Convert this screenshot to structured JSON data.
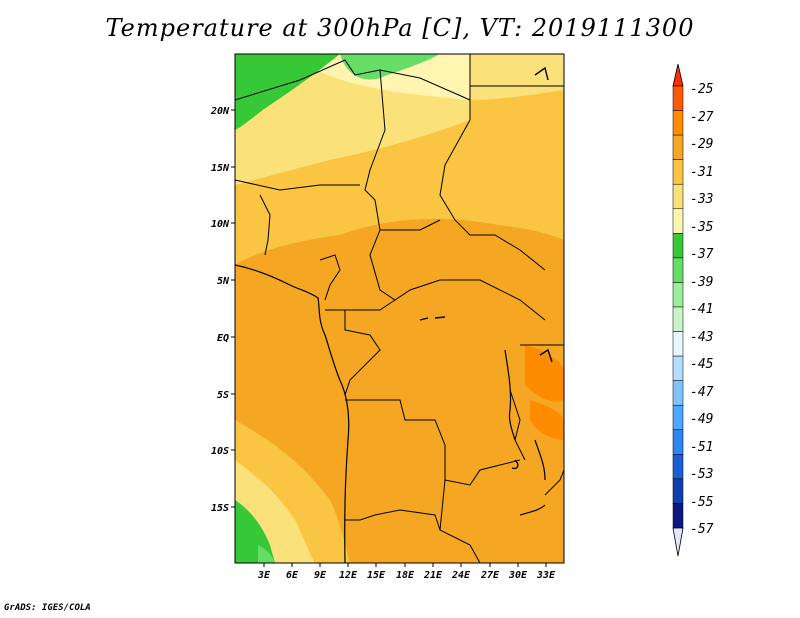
{
  "title": "Temperature at 300hPa [C], VT: 2019111300",
  "credit": "GrADS: IGES/COLA",
  "map": {
    "lat_labels": [
      "20N",
      "15N",
      "10N",
      "5N",
      "EQ",
      "5S",
      "10S",
      "15S"
    ],
    "lon_labels": [
      "3E",
      "6E",
      "9E",
      "12E",
      "15E",
      "18E",
      "21E",
      "24E",
      "27E",
      "30E",
      "33E"
    ]
  },
  "colorbar": {
    "labels": [
      "-25",
      "-27",
      "-29",
      "-31",
      "-33",
      "-35",
      "-37",
      "-39",
      "-41",
      "-43",
      "-45",
      "-47",
      "-49",
      "-51",
      "-53",
      "-55",
      "-57"
    ],
    "colors": [
      "#ff5a00",
      "#ff8c00",
      "#f5a623",
      "#f9c542",
      "#fbe17a",
      "#fff5b0",
      "#37c837",
      "#66dd66",
      "#99ee99",
      "#c8f5c8",
      "#e6f7ff",
      "#b3deff",
      "#80c4ff",
      "#4da6ff",
      "#2e86f2",
      "#1a5fd6",
      "#1040b0",
      "#0a1a80"
    ],
    "top_arrow_color": "#ff3000",
    "bottom_arrow_color": "#e6e6ff"
  }
}
